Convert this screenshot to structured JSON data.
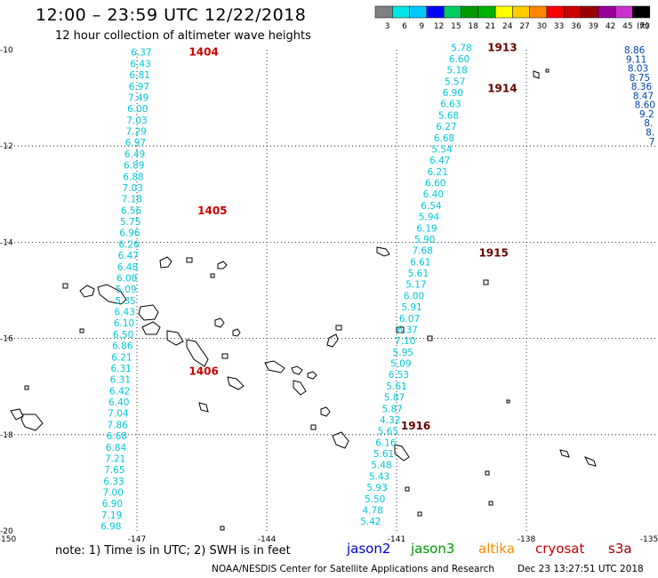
{
  "header": {
    "title": "12:00 – 23:59 UTC 12/22/2018",
    "subtitle": "12 hour collection of altimeter wave heights"
  },
  "legend": {
    "unit": "(ft)",
    "bins": [
      {
        "label": "3",
        "color": "#808080"
      },
      {
        "label": "6",
        "color": "#00e6e6"
      },
      {
        "label": "9",
        "color": "#00c8ff"
      },
      {
        "label": "12",
        "color": "#0000ff"
      },
      {
        "label": "15",
        "color": "#00cc66"
      },
      {
        "label": "18",
        "color": "#009900"
      },
      {
        "label": "21",
        "color": "#00b000"
      },
      {
        "label": "24",
        "color": "#ffff00"
      },
      {
        "label": "27",
        "color": "#ffcc00"
      },
      {
        "label": "30",
        "color": "#ff8800"
      },
      {
        "label": "33",
        "color": "#ff0000"
      },
      {
        "label": "36",
        "color": "#cc0000"
      },
      {
        "label": "39",
        "color": "#990000"
      },
      {
        "label": "42",
        "color": "#990099"
      },
      {
        "label": "45",
        "color": "#cc33cc"
      },
      {
        "label": "70",
        "color": "#000000"
      }
    ]
  },
  "map": {
    "lon_range": [
      -150,
      -135
    ],
    "lat_range": [
      -20,
      -10
    ],
    "lon_ticks": [
      "-150",
      "-147",
      "-144",
      "-141",
      "-138",
      "-135"
    ],
    "lat_ticks": [
      "-10",
      "-12",
      "-14",
      "-16",
      "-18",
      "-20"
    ]
  },
  "passes": [
    {
      "id": "1404",
      "color": "#cc0000",
      "label_lon": -145.8,
      "label_lat": -10.05
    },
    {
      "id": "1405",
      "color": "#cc0000",
      "label_lon": -145.6,
      "label_lat": -13.35
    },
    {
      "id": "1406",
      "color": "#cc0000",
      "label_lon": -145.8,
      "label_lat": -16.68
    },
    {
      "id": "1913",
      "color": "#660000",
      "label_lon": -138.9,
      "label_lat": -9.95
    },
    {
      "id": "1914",
      "color": "#660000",
      "label_lon": -138.9,
      "label_lat": -10.8
    },
    {
      "id": "1915",
      "color": "#660000",
      "label_lon": -139.1,
      "label_lat": -14.22
    },
    {
      "id": "1916",
      "color": "#660000",
      "label_lon": -140.9,
      "label_lat": -17.82
    }
  ],
  "tracks": [
    {
      "name": "left-track",
      "color": "#00c8d8",
      "lon_start": -146.9,
      "lat_start": -10.05,
      "lon_end": -147.6,
      "lat_end": -19.9,
      "values": [
        "6.37",
        "6.43",
        "6.81",
        "6.97",
        "7.49",
        "6.00",
        "7.03",
        "7.29",
        "6.97",
        "6.49",
        "6.89",
        "6.88",
        "7.03",
        "7.18",
        "6.56",
        "5.75",
        "6.96",
        "6.26",
        "6.47",
        "6.48",
        "6.08",
        "5.09",
        "5.35",
        "6.43",
        "6.10",
        "6.50",
        "6.86",
        "6.21",
        "6.31",
        "6.31",
        "6.42",
        "6.40",
        "7.04",
        "7.86",
        "6.68",
        "6.84",
        "7.21",
        "7.65",
        "6.33",
        "7.00",
        "6.90",
        "7.19",
        "6.98"
      ]
    },
    {
      "name": "middle-track",
      "color": "#00c8d8",
      "lon_start": -139.5,
      "lat_start": -9.95,
      "lon_end": -141.6,
      "lat_end": -19.8,
      "values": [
        "5.78",
        "6.60",
        "5.18",
        "5.57",
        "6.90",
        "6.63",
        "5.68",
        "6.27",
        "6.68",
        "5.54",
        "6.47",
        "6.21",
        "6.60",
        "6.40",
        "6.54",
        "5.94",
        "6.19",
        "5.90",
        "7.68",
        "6.61",
        "5.61",
        "5.17",
        "6.00",
        "5.91",
        "6.07",
        "6.37",
        "7.10",
        "5.95",
        "5.09",
        "6.53",
        "5.61",
        "5.87",
        "5.87",
        "4.32",
        "5.65",
        "6.16",
        "5.61",
        "5.48",
        "5.43",
        "5.93",
        "5.50",
        "4.78",
        "5.42"
      ]
    },
    {
      "name": "right-track",
      "color": "#0044aa",
      "lon_start": -135.5,
      "lat_start": -10.0,
      "lon_end": -135.1,
      "lat_end": -11.9,
      "values": [
        "8.86",
        "9.11",
        "8.03",
        "8.75",
        "8.36",
        "8.47",
        "8.60",
        "9.2",
        "8.",
        "8.",
        "7"
      ]
    }
  ],
  "footer": {
    "note": "note:  1) Time is in UTC;  2) SWH is in feet",
    "satellites": [
      {
        "name": "jason2",
        "color": "#0000cc"
      },
      {
        "name": "jason3",
        "color": "#009900"
      },
      {
        "name": "altika",
        "color": "#ff8800"
      },
      {
        "name": "cryosat",
        "color": "#cc0000"
      },
      {
        "name": "s3a",
        "color": "#990000"
      }
    ],
    "credit": "NOAA/NESDIS Center for Satellite Applications and Research",
    "stamp": "Dec 23 13:27:51 UTC 2018"
  }
}
